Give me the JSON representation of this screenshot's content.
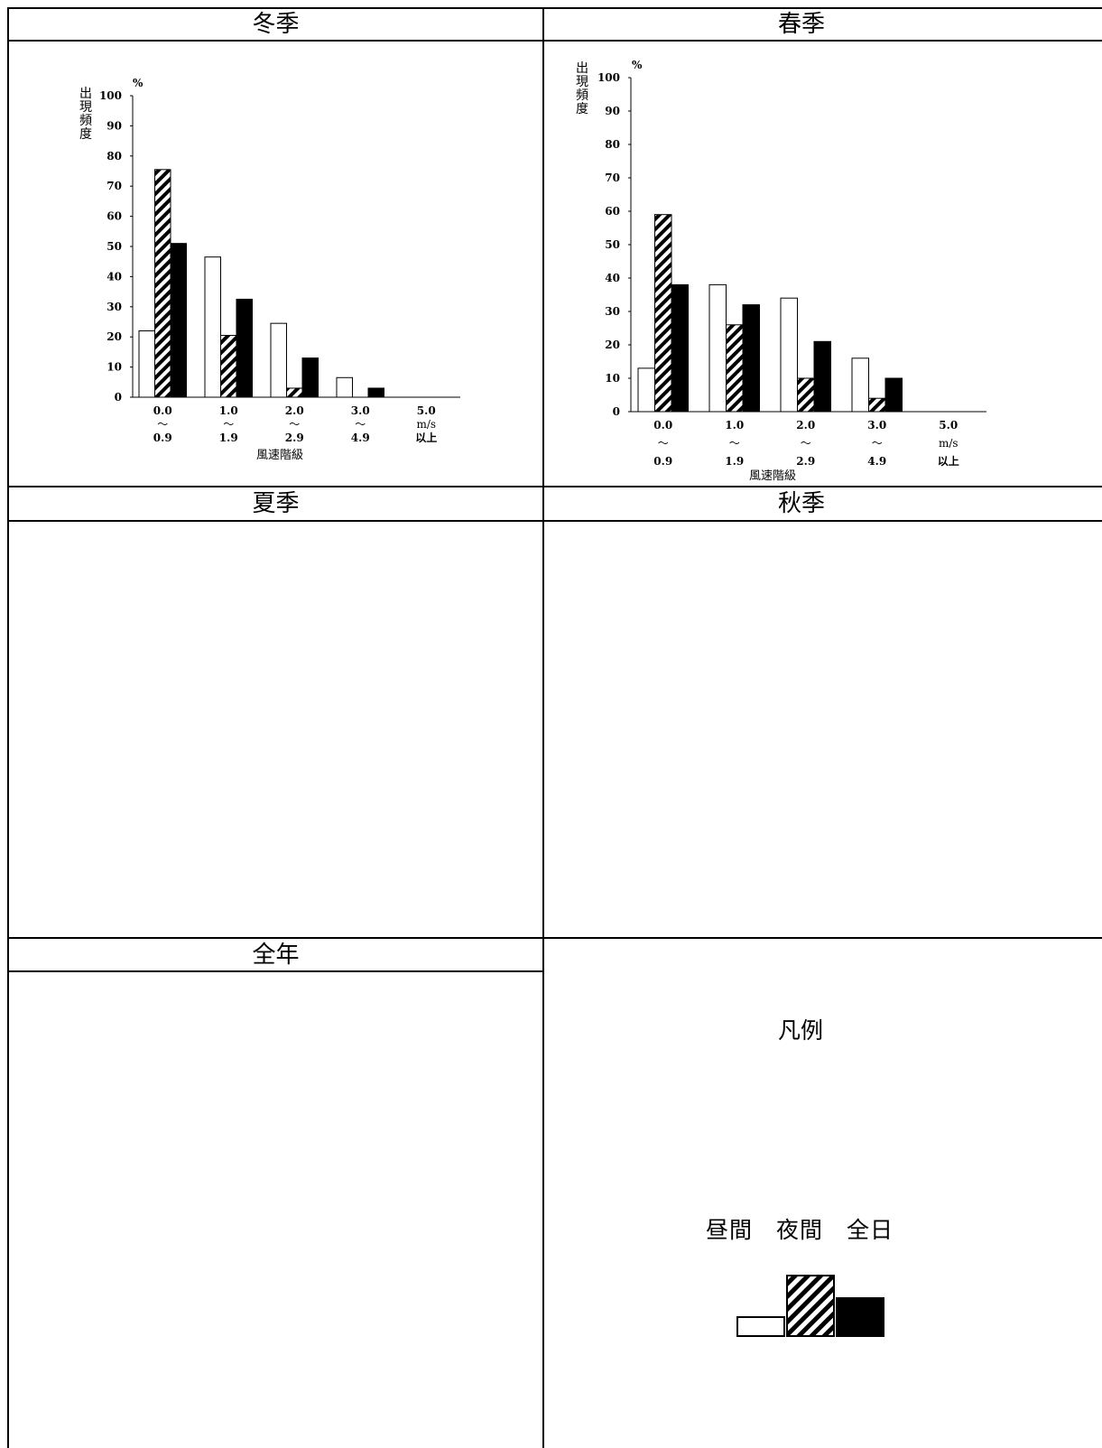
{
  "panels": {
    "winter_title": "冬季",
    "spring_title": "春季",
    "summer_title": "夏季",
    "autumn_title": "秋季",
    "annual_title": "全年"
  },
  "legend": {
    "title": "凡例",
    "items": [
      "昼間",
      "夜間",
      "全日"
    ],
    "labels_line": "昼間　夜間　全日"
  },
  "colors": {
    "line": "#000000",
    "background": "#ffffff",
    "bar_solid": "#000000"
  },
  "chart_data": [
    {
      "id": "winter",
      "type": "bar",
      "ylabel": "出現頻度",
      "yunit": "%",
      "xlabel": "風速階級",
      "ylim": [
        0,
        100
      ],
      "yticks": [
        0,
        10,
        20,
        30,
        40,
        50,
        60,
        70,
        80,
        90,
        100
      ],
      "categories": [
        {
          "top": "0.0",
          "mid": "～",
          "bottom": "0.9"
        },
        {
          "top": "1.0",
          "mid": "～",
          "bottom": "1.9"
        },
        {
          "top": "2.0",
          "mid": "～",
          "bottom": "2.9"
        },
        {
          "top": "3.0",
          "mid": "～",
          "bottom": "4.9"
        },
        {
          "top": "5.0",
          "mid": "m/s",
          "bottom": "以上"
        }
      ],
      "series": [
        {
          "name": "昼間",
          "style": "white",
          "values": [
            22,
            46.5,
            24.5,
            6.5,
            0
          ]
        },
        {
          "name": "夜間",
          "style": "hatch",
          "values": [
            75.5,
            20.5,
            3,
            0,
            0
          ]
        },
        {
          "name": "全日",
          "style": "black",
          "values": [
            51,
            32.5,
            13,
            3,
            0
          ]
        }
      ]
    },
    {
      "id": "spring",
      "type": "bar",
      "ylabel": "出現頻度",
      "yunit": "%",
      "xlabel": "風速階級",
      "ylim": [
        0,
        100
      ],
      "yticks": [
        0,
        10,
        20,
        30,
        40,
        50,
        60,
        70,
        80,
        90,
        100
      ],
      "categories": [
        {
          "top": "0.0",
          "mid": "～",
          "bottom": "0.9"
        },
        {
          "top": "1.0",
          "mid": "～",
          "bottom": "1.9"
        },
        {
          "top": "2.0",
          "mid": "～",
          "bottom": "2.9"
        },
        {
          "top": "3.0",
          "mid": "～",
          "bottom": "4.9"
        },
        {
          "top": "5.0",
          "mid": "m/s",
          "bottom": "以上"
        }
      ],
      "series": [
        {
          "name": "昼間",
          "style": "white",
          "values": [
            13,
            38,
            34,
            16,
            0
          ]
        },
        {
          "name": "夜間",
          "style": "hatch",
          "values": [
            59,
            26,
            10,
            4,
            0
          ]
        },
        {
          "name": "全日",
          "style": "black",
          "values": [
            38,
            32,
            21,
            10,
            0
          ]
        }
      ]
    }
  ]
}
